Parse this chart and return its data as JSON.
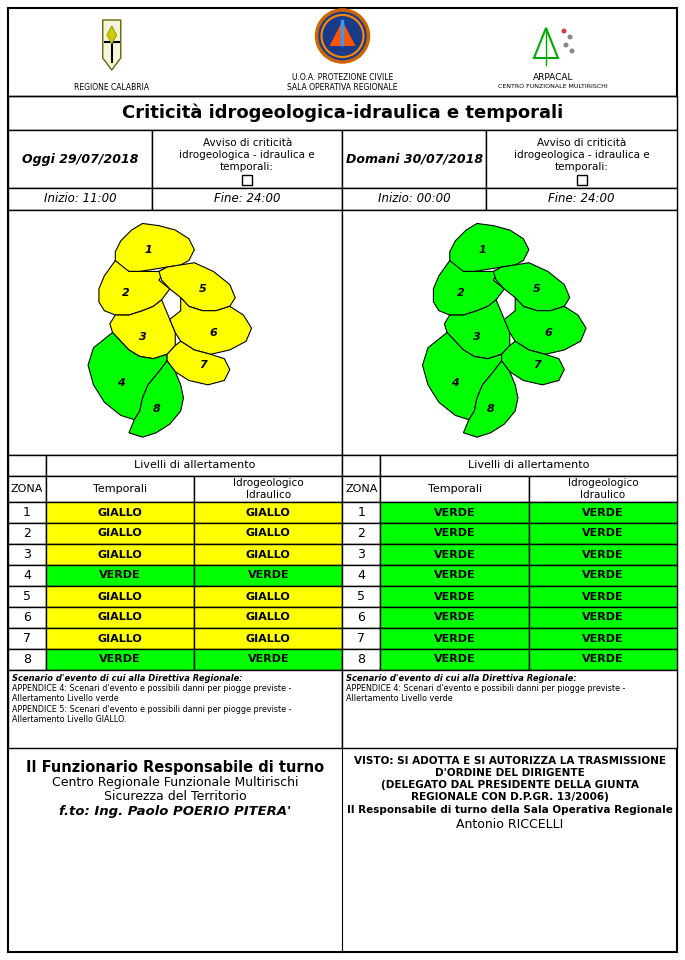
{
  "title": "Criticità idrogeologica-idraulica e temporali",
  "bg_color": "#ffffff",
  "today_label": "Oggi 29/07/2018",
  "tomorrow_label": "Domani 30/07/2018",
  "avviso_label": "Avviso di criticità\nidrogeologica - idraulica e\ntemporali:",
  "inizio_today": "Inizio: 11:00",
  "fine_today": "Fine: 24:00",
  "inizio_tomorrow": "Inizio: 00:00",
  "fine_tomorrow": "Fine: 24:00",
  "livelli_label": "Livelli di allertamento",
  "zona_label": "ZONA",
  "temporali_label": "Temporali",
  "idro_label": "Idrogeologico\nIdraulico",
  "zones": [
    1,
    2,
    3,
    4,
    5,
    6,
    7,
    8
  ],
  "today_temporali": [
    "GIALLO",
    "GIALLO",
    "GIALLO",
    "VERDE",
    "GIALLO",
    "GIALLO",
    "GIALLO",
    "VERDE"
  ],
  "today_idro": [
    "GIALLO",
    "GIALLO",
    "GIALLO",
    "VERDE",
    "GIALLO",
    "GIALLO",
    "GIALLO",
    "VERDE"
  ],
  "tomorrow_temporali": [
    "VERDE",
    "VERDE",
    "VERDE",
    "VERDE",
    "VERDE",
    "VERDE",
    "VERDE",
    "VERDE"
  ],
  "tomorrow_idro": [
    "VERDE",
    "VERDE",
    "VERDE",
    "VERDE",
    "VERDE",
    "VERDE",
    "VERDE",
    "VERDE"
  ],
  "yellow": "#ffff00",
  "green": "#00ff00",
  "scenario_today_bold": "Scenario d'evento di cui alla Direttiva Regionale:",
  "scenario_today_text": "APPENDICE 4: Scenari d'evento e possibili danni per piogge previste -\nAllertamento Livello verde\nAPPENDICE 5: Scenari d'evento e possibili danni per piogge previste -\nAllertamento Livello GIALLO.",
  "scenario_tomorrow_bold": "Scenario d'evento di cui alla Direttiva Regionale:",
  "scenario_tomorrow_text": "APPENDICE 4: Scenari d'evento e possibili danni per piogge previste -\nAllertamento Livello verde",
  "footer_left_bold": "Il Funzionario Responsabile di turno",
  "footer_left_line1": "Centro Regionale Funzionale Multirischi",
  "footer_left_line2": "Sicurezza del Territorio",
  "footer_left_italic": "f.to: Ing. Paolo POERIO PITERA'",
  "footer_right_line1": "VISTO: SI ADOTTA E SI AUTORIZZA LA TRASMISSIONE",
  "footer_right_line2": "D'ORDINE DEL DIRIGENTE",
  "footer_right_line3": "(DELEGATO DAL PRESIDENTE DELLA GIUNTA",
  "footer_right_line4": "REGIONALE CON D.P.GR. 13/2006)",
  "footer_right_bold": "Il Responsabile di turno della Sala Operativa Regionale",
  "footer_right_name": "Antonio RICCELLI",
  "header_left": "REGIONE CALABRIA",
  "header_center1": "U.O.A. PROTEZIONE CIVILE",
  "header_center2": "SALA OPERATIVA REGIONALE",
  "header_right1": "ARPACAL",
  "header_right2": "CENTRO FUNZIONALE MULTIRISCHI"
}
